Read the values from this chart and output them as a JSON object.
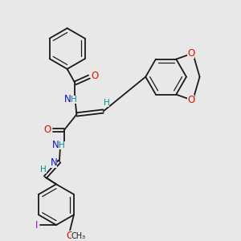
{
  "bg_color": "#e8e8e8",
  "bond_color": "#1a1a1a",
  "atom_colors": {
    "N": "#1010cc",
    "O": "#dd1100",
    "H": "#009090",
    "I": "#aa00cc",
    "C": "#1a1a1a"
  },
  "figsize": [
    3.0,
    3.0
  ],
  "dpi": 100
}
